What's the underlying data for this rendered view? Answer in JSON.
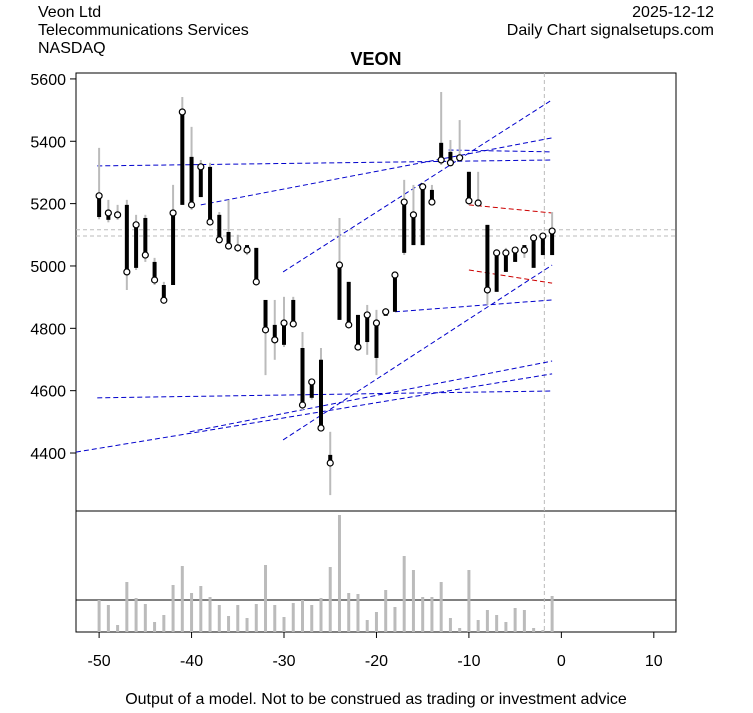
{
  "header": {
    "company": "Veon Ltd",
    "sector": "Telecommunications Services",
    "exchange": "NASDAQ",
    "date": "2025-12-12",
    "source": "Daily Chart signalsetups.com"
  },
  "footer": "Output of a model. Not to be construed as trading or investment advice",
  "chart_data": {
    "type": "candlestick",
    "title": "VEON",
    "x": [
      -50,
      -49,
      -48,
      -47,
      -46,
      -45,
      -44,
      -43,
      -42,
      -41,
      -40,
      -39,
      -38,
      -37,
      -36,
      -35,
      -34,
      -33,
      -32,
      -31,
      -30,
      -29,
      -28,
      -27,
      -26,
      -25,
      -24,
      -23,
      -22,
      -21,
      -20,
      -19,
      -18,
      -17,
      -16,
      -15,
      -14,
      -13,
      -12,
      -11,
      -10,
      -9,
      -8,
      -7,
      -6,
      -5,
      -4,
      -3,
      -2,
      -1
    ],
    "open": [
      5157,
      5148,
      5160,
      5196,
      4994,
      5154,
      5013,
      4939,
      4939,
      5196,
      5350,
      5221,
      5318,
      5164,
      5109,
      5064,
      5067,
      5058,
      4891,
      4811,
      4747,
      4891,
      4737,
      4577,
      4699,
      4394,
      4827,
      4949,
      4843,
      4756,
      4705,
      4840,
      4853,
      5042,
      5067,
      5067,
      5244,
      5395,
      5366,
      5356,
      5302,
      5212,
      5132,
      4917,
      4981,
      5013,
      5067,
      4994,
      5035,
      5035
    ],
    "high": [
      5379,
      5212,
      5196,
      5212,
      5164,
      5164,
      5026,
      4949,
      5260,
      5542,
      5446,
      5340,
      5331,
      5173,
      5212,
      5100,
      5067,
      5058,
      4891,
      4891,
      4901,
      4901,
      4788,
      4634,
      4737,
      4468,
      5154,
      4949,
      4843,
      4875,
      4859,
      4865,
      4971,
      5276,
      5260,
      5260,
      5260,
      5558,
      5404,
      5468,
      5302,
      5302,
      5132,
      5045,
      5058,
      5058,
      5067,
      5090,
      5100,
      5173
    ],
    "low": [
      5150,
      5140,
      5148,
      4923,
      4987,
      5013,
      4939,
      4885,
      4939,
      5196,
      5180,
      5221,
      5141,
      5077,
      5058,
      5045,
      5035,
      4939,
      4650,
      4699,
      4740,
      4808,
      4538,
      4571,
      4474,
      4265,
      4827,
      4804,
      4731,
      4715,
      4650,
      4840,
      4853,
      5035,
      5067,
      5067,
      5196,
      5324,
      5324,
      5340,
      5196,
      5196,
      4875,
      4917,
      4981,
      5013,
      5026,
      4994,
      5035,
      5035
    ],
    "close": [
      5225,
      5170,
      5164,
      4981,
      5132,
      5035,
      4955,
      4890,
      5170,
      5494,
      5196,
      5318,
      5141,
      5084,
      5064,
      5058,
      5051,
      4949,
      4795,
      4763,
      4817,
      4814,
      4554,
      4628,
      4480,
      4368,
      5003,
      4811,
      4740,
      4843,
      4817,
      4853,
      4971,
      5205,
      5164,
      5254,
      5205,
      5340,
      5331,
      5347,
      5209,
      5202,
      4923,
      5042,
      5042,
      5051,
      5051,
      5090,
      5096,
      5112
    ],
    "volume": [
      32,
      27,
      7,
      50,
      34,
      28,
      10,
      17,
      47,
      66,
      39,
      46,
      35,
      27,
      16,
      27,
      14,
      28,
      67,
      27,
      15,
      29,
      32,
      27,
      34,
      65,
      117,
      39,
      38,
      12,
      20,
      42,
      25,
      76,
      62,
      35,
      35,
      50,
      14,
      4,
      62,
      12,
      22,
      17,
      10,
      24,
      22,
      4,
      2,
      36
    ],
    "volume_ylim": [
      0,
      121
    ],
    "trend_lines": [
      {
        "color": "#0000cc",
        "x": [
          -50.2,
          -1
        ],
        "y": [
          5321,
          5340
        ]
      },
      {
        "color": "#0000cc",
        "x": [
          -50.2,
          -1
        ],
        "y": [
          4577,
          4599
        ]
      },
      {
        "color": "#0000cc",
        "x": [
          -52.5,
          -1
        ],
        "y": [
          4403,
          4654
        ]
      },
      {
        "color": "#0000cc",
        "x": [
          -40.2,
          -1
        ],
        "y": [
          4468,
          4695
        ]
      },
      {
        "color": "#0000cc",
        "x": [
          -30.1,
          -1
        ],
        "y": [
          4442,
          5003
        ]
      },
      {
        "color": "#0000cc",
        "x": [
          -30.1,
          -1
        ],
        "y": [
          4981,
          5533
        ]
      },
      {
        "color": "#0000cc",
        "x": [
          -39,
          -1
        ],
        "y": [
          5196,
          5411
        ]
      },
      {
        "color": "#0000cc",
        "x": [
          -18,
          -1
        ],
        "y": [
          4853,
          4891
        ]
      },
      {
        "color": "#0000cc",
        "x": [
          -12.2,
          -1
        ],
        "y": [
          5372,
          5366
        ]
      },
      {
        "color": "#cc0000",
        "x": [
          -10,
          -1
        ],
        "y": [
          5196,
          5170
        ]
      },
      {
        "color": "#cc0000",
        "x": [
          -10,
          -1
        ],
        "y": [
          4987,
          4945
        ]
      }
    ],
    "hlines": [
      5116,
      5096
    ],
    "vline": -1.84,
    "xlim": [
      -52.5,
      12.4
    ],
    "ylim": [
      4214,
      5619
    ],
    "xticks": [
      -50,
      -40,
      -30,
      -20,
      -10,
      0,
      10
    ],
    "yticks": [
      4400,
      4600,
      4800,
      5000,
      5200,
      5400,
      5600
    ]
  }
}
